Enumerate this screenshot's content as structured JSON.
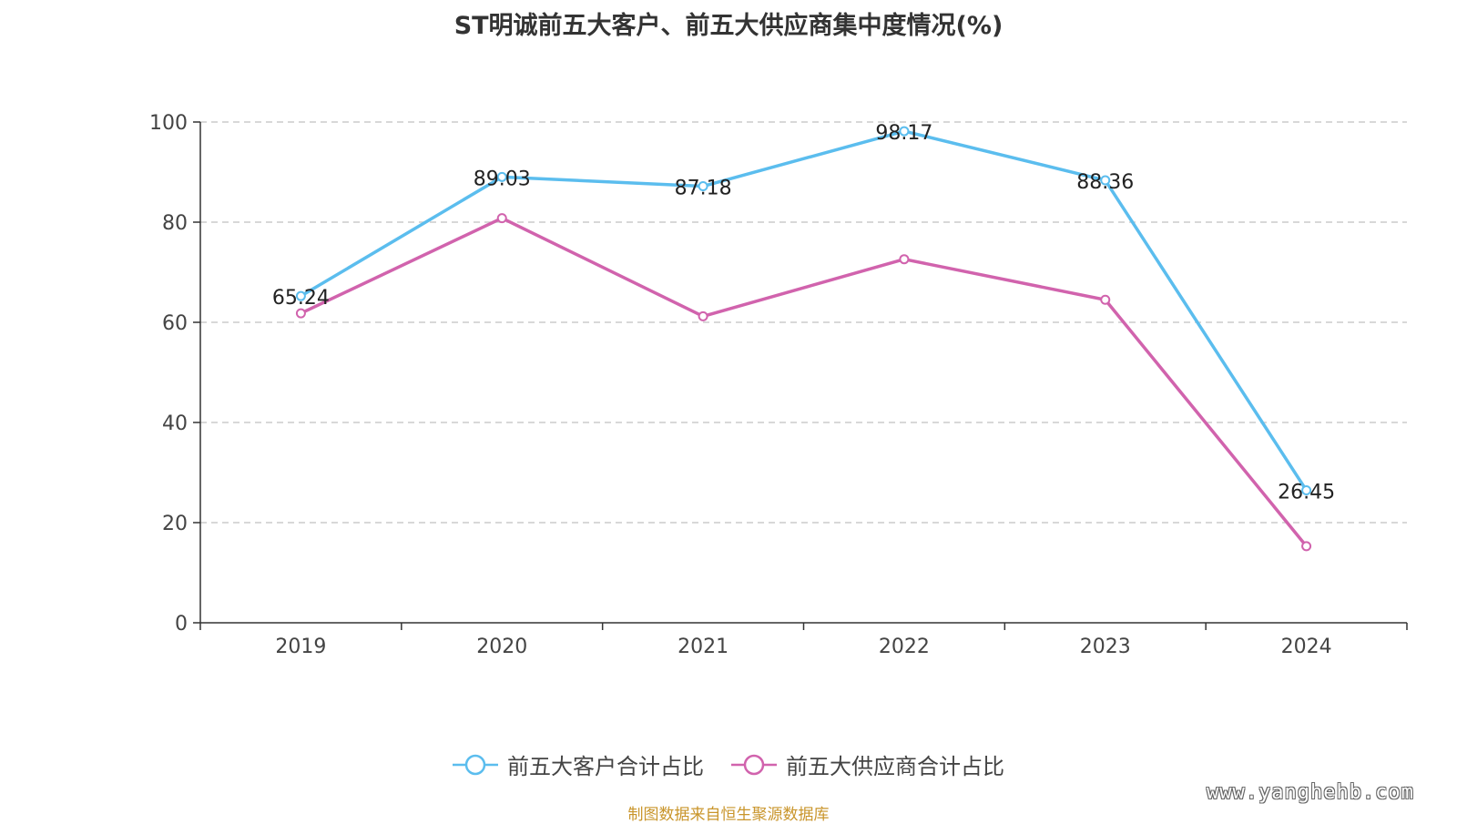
{
  "chart_data": {
    "type": "line",
    "title": "ST明诚前五大客户、前五大供应商集中度情况(%)",
    "categories": [
      "2019",
      "2020",
      "2021",
      "2022",
      "2023",
      "2024"
    ],
    "ylim": [
      0,
      100
    ],
    "yticks": [
      0,
      20,
      40,
      60,
      80,
      100
    ],
    "grid": true,
    "legend_position": "bottom",
    "series": [
      {
        "name": "前五大客户合计占比",
        "color": "#5bbdee",
        "values": [
          65.24,
          89.03,
          87.18,
          98.17,
          88.36,
          26.45
        ],
        "labels": [
          "65.24",
          "89.03",
          "87.18",
          "98.17",
          "88.36",
          "26.45"
        ]
      },
      {
        "name": "前五大供应商合计占比",
        "color": "#d163ad",
        "values": [
          61.8,
          80.8,
          61.2,
          72.6,
          64.5,
          15.3
        ]
      }
    ]
  },
  "footer": {
    "source": "制图数据来自恒生聚源数据库",
    "watermark": "www.yanghehb.com"
  }
}
